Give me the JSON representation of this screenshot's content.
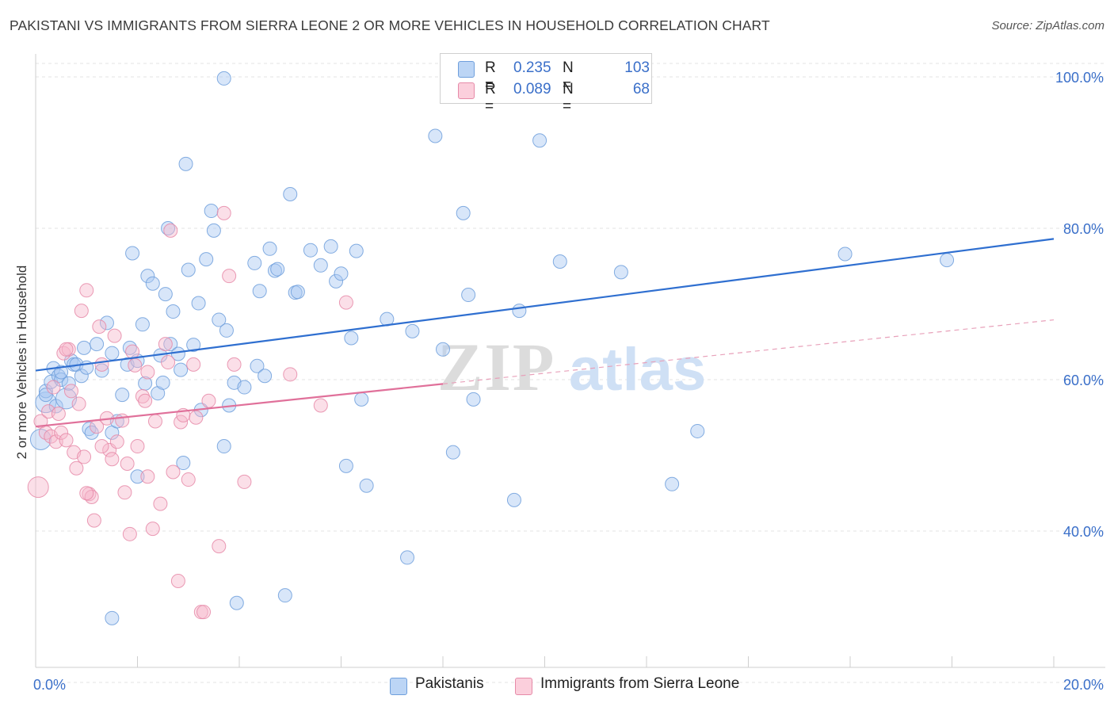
{
  "title": "PAKISTANI VS IMMIGRANTS FROM SIERRA LEONE 2 OR MORE VEHICLES IN HOUSEHOLD CORRELATION CHART",
  "source": "Source: ZipAtlas.com",
  "watermark": {
    "zip": "ZIP",
    "atlas": "atlas"
  },
  "legend": {
    "rows": [
      {
        "r_label": "R =",
        "r_value": "0.235",
        "n_label": "N =",
        "n_value": "103",
        "color": "#a9c8f2"
      },
      {
        "r_label": "R =",
        "r_value": "0.089",
        "n_label": "N =",
        "n_value": "68",
        "color": "#f7b8cc"
      }
    ]
  },
  "bottom_legend": [
    {
      "label": "Pakistanis",
      "color": "#a9c8f2"
    },
    {
      "label": "Immigrants from Sierra Leone",
      "color": "#f7b8cc"
    }
  ],
  "chart_data": {
    "type": "scatter",
    "ylabel": "2 or more Vehicles in Household",
    "xlim": [
      0,
      20
    ],
    "ylim": [
      22,
      104
    ],
    "x_tick_labels": [
      {
        "value": 0,
        "label": "0.0%"
      },
      {
        "value": 20,
        "label": "20.0%"
      }
    ],
    "y_tick_labels": [
      {
        "value": 40,
        "label": "40.0%"
      },
      {
        "value": 60,
        "label": "60.0%"
      },
      {
        "value": 80,
        "label": "80.0%"
      },
      {
        "value": 100,
        "label": "100.0%"
      }
    ],
    "grid": true,
    "series": [
      {
        "name": "Pakistanis",
        "color": "#6f9fdc",
        "fill": "#a9c8f2",
        "trend": {
          "x0": 0,
          "y0": 61.2,
          "x1": 20,
          "y1": 78.6,
          "dashed_from": null
        },
        "points": [
          [
            0.1,
            52.1
          ],
          [
            0.2,
            57.0
          ],
          [
            0.2,
            58.5
          ],
          [
            0.3,
            59.7
          ],
          [
            0.35,
            61.5
          ],
          [
            0.4,
            56.5
          ],
          [
            0.45,
            60.5
          ],
          [
            0.5,
            60.0
          ],
          [
            0.6,
            57.5
          ],
          [
            0.65,
            59.5
          ],
          [
            0.7,
            62.5
          ],
          [
            0.75,
            62.0
          ],
          [
            0.8,
            62.0
          ],
          [
            0.9,
            60.5
          ],
          [
            0.95,
            64.2
          ],
          [
            1.0,
            61.6
          ],
          [
            1.05,
            53.5
          ],
          [
            1.1,
            53.0
          ],
          [
            1.2,
            64.7
          ],
          [
            1.3,
            61.2
          ],
          [
            1.4,
            67.5
          ],
          [
            1.5,
            63.5
          ],
          [
            1.5,
            53.0
          ],
          [
            1.6,
            54.5
          ],
          [
            1.7,
            58.0
          ],
          [
            1.8,
            62.0
          ],
          [
            1.85,
            64.2
          ],
          [
            1.9,
            76.7
          ],
          [
            2.0,
            47.2
          ],
          [
            2.0,
            62.5
          ],
          [
            2.1,
            67.3
          ],
          [
            2.15,
            59.5
          ],
          [
            2.2,
            73.7
          ],
          [
            2.3,
            72.7
          ],
          [
            2.4,
            58.2
          ],
          [
            2.45,
            63.2
          ],
          [
            2.5,
            59.6
          ],
          [
            2.55,
            71.3
          ],
          [
            2.6,
            80.0
          ],
          [
            2.65,
            64.7
          ],
          [
            2.7,
            69.0
          ],
          [
            2.8,
            63.4
          ],
          [
            2.85,
            61.3
          ],
          [
            2.9,
            49.0
          ],
          [
            2.95,
            88.5
          ],
          [
            3.0,
            74.5
          ],
          [
            3.1,
            64.6
          ],
          [
            3.2,
            70.1
          ],
          [
            3.25,
            56.0
          ],
          [
            3.35,
            75.9
          ],
          [
            3.45,
            82.3
          ],
          [
            3.5,
            79.7
          ],
          [
            3.6,
            67.9
          ],
          [
            3.7,
            51.2
          ],
          [
            3.75,
            66.5
          ],
          [
            3.8,
            56.6
          ],
          [
            3.9,
            59.6
          ],
          [
            3.95,
            30.5
          ],
          [
            4.1,
            59.0
          ],
          [
            4.3,
            75.4
          ],
          [
            4.35,
            61.8
          ],
          [
            4.4,
            71.7
          ],
          [
            4.5,
            60.5
          ],
          [
            4.6,
            77.3
          ],
          [
            4.7,
            74.4
          ],
          [
            4.75,
            74.6
          ],
          [
            4.9,
            31.5
          ],
          [
            5.0,
            84.5
          ],
          [
            5.1,
            71.5
          ],
          [
            5.15,
            71.6
          ],
          [
            5.4,
            77.1
          ],
          [
            5.6,
            75.1
          ],
          [
            5.8,
            77.6
          ],
          [
            5.9,
            73.0
          ],
          [
            6.0,
            74.0
          ],
          [
            6.1,
            48.6
          ],
          [
            6.2,
            65.5
          ],
          [
            6.3,
            77.0
          ],
          [
            6.4,
            57.4
          ],
          [
            6.5,
            46.0
          ],
          [
            6.9,
            68.0
          ],
          [
            7.3,
            36.5
          ],
          [
            7.4,
            66.4
          ],
          [
            7.85,
            92.2
          ],
          [
            8.0,
            64.0
          ],
          [
            8.2,
            50.4
          ],
          [
            8.4,
            82.0
          ],
          [
            8.5,
            71.2
          ],
          [
            8.6,
            57.4
          ],
          [
            9.4,
            44.1
          ],
          [
            9.5,
            69.1
          ],
          [
            9.9,
            91.6
          ],
          [
            10.3,
            75.6
          ],
          [
            11.5,
            74.2
          ],
          [
            12.5,
            46.2
          ],
          [
            13.0,
            53.2
          ],
          [
            15.9,
            76.6
          ],
          [
            17.9,
            75.8
          ],
          [
            3.7,
            99.8
          ],
          [
            11.3,
            100.1
          ],
          [
            1.5,
            28.5
          ],
          [
            0.2,
            58.0
          ],
          [
            0.5,
            61.0
          ]
        ]
      },
      {
        "name": "Immigrants from Sierra Leone",
        "color": "#e68aa8",
        "fill": "#f7b8cc",
        "trend": {
          "x0": 0,
          "y0": 53.8,
          "x1": 20,
          "y1": 67.9,
          "dashed_from": 8
        },
        "points": [
          [
            0.05,
            45.8
          ],
          [
            0.1,
            54.5
          ],
          [
            0.2,
            53.0
          ],
          [
            0.25,
            55.8
          ],
          [
            0.3,
            52.5
          ],
          [
            0.35,
            59.0
          ],
          [
            0.4,
            51.8
          ],
          [
            0.5,
            53.0
          ],
          [
            0.55,
            63.5
          ],
          [
            0.6,
            52.0
          ],
          [
            0.65,
            64.0
          ],
          [
            0.7,
            58.5
          ],
          [
            0.75,
            50.4
          ],
          [
            0.8,
            48.3
          ],
          [
            0.85,
            56.8
          ],
          [
            0.9,
            69.1
          ],
          [
            0.95,
            49.8
          ],
          [
            1.0,
            71.8
          ],
          [
            1.05,
            44.9
          ],
          [
            1.1,
            44.5
          ],
          [
            1.15,
            41.4
          ],
          [
            1.2,
            53.8
          ],
          [
            1.25,
            67.0
          ],
          [
            1.3,
            62.0
          ],
          [
            1.4,
            54.9
          ],
          [
            1.45,
            50.7
          ],
          [
            1.5,
            49.5
          ],
          [
            1.55,
            65.8
          ],
          [
            1.6,
            51.8
          ],
          [
            1.7,
            54.6
          ],
          [
            1.75,
            45.1
          ],
          [
            1.8,
            48.9
          ],
          [
            1.85,
            39.6
          ],
          [
            1.9,
            63.7
          ],
          [
            1.95,
            61.9
          ],
          [
            2.0,
            51.2
          ],
          [
            2.1,
            57.8
          ],
          [
            2.15,
            57.2
          ],
          [
            2.2,
            47.2
          ],
          [
            2.3,
            40.3
          ],
          [
            2.35,
            54.5
          ],
          [
            2.45,
            43.6
          ],
          [
            2.55,
            64.7
          ],
          [
            2.6,
            62.3
          ],
          [
            2.65,
            79.7
          ],
          [
            2.7,
            47.8
          ],
          [
            2.8,
            33.4
          ],
          [
            2.85,
            54.4
          ],
          [
            2.9,
            55.3
          ],
          [
            3.0,
            46.8
          ],
          [
            3.1,
            62.0
          ],
          [
            3.15,
            55.0
          ],
          [
            3.25,
            29.3
          ],
          [
            3.3,
            29.3
          ],
          [
            3.4,
            57.2
          ],
          [
            3.6,
            38.0
          ],
          [
            3.7,
            82.0
          ],
          [
            3.8,
            73.7
          ],
          [
            3.9,
            62.0
          ],
          [
            4.1,
            46.5
          ],
          [
            5.0,
            60.7
          ],
          [
            5.6,
            56.6
          ],
          [
            6.1,
            70.2
          ],
          [
            0.6,
            64.0
          ],
          [
            1.0,
            45.0
          ],
          [
            0.45,
            55.5
          ],
          [
            1.3,
            51.2
          ],
          [
            2.2,
            61.0
          ]
        ]
      }
    ]
  }
}
